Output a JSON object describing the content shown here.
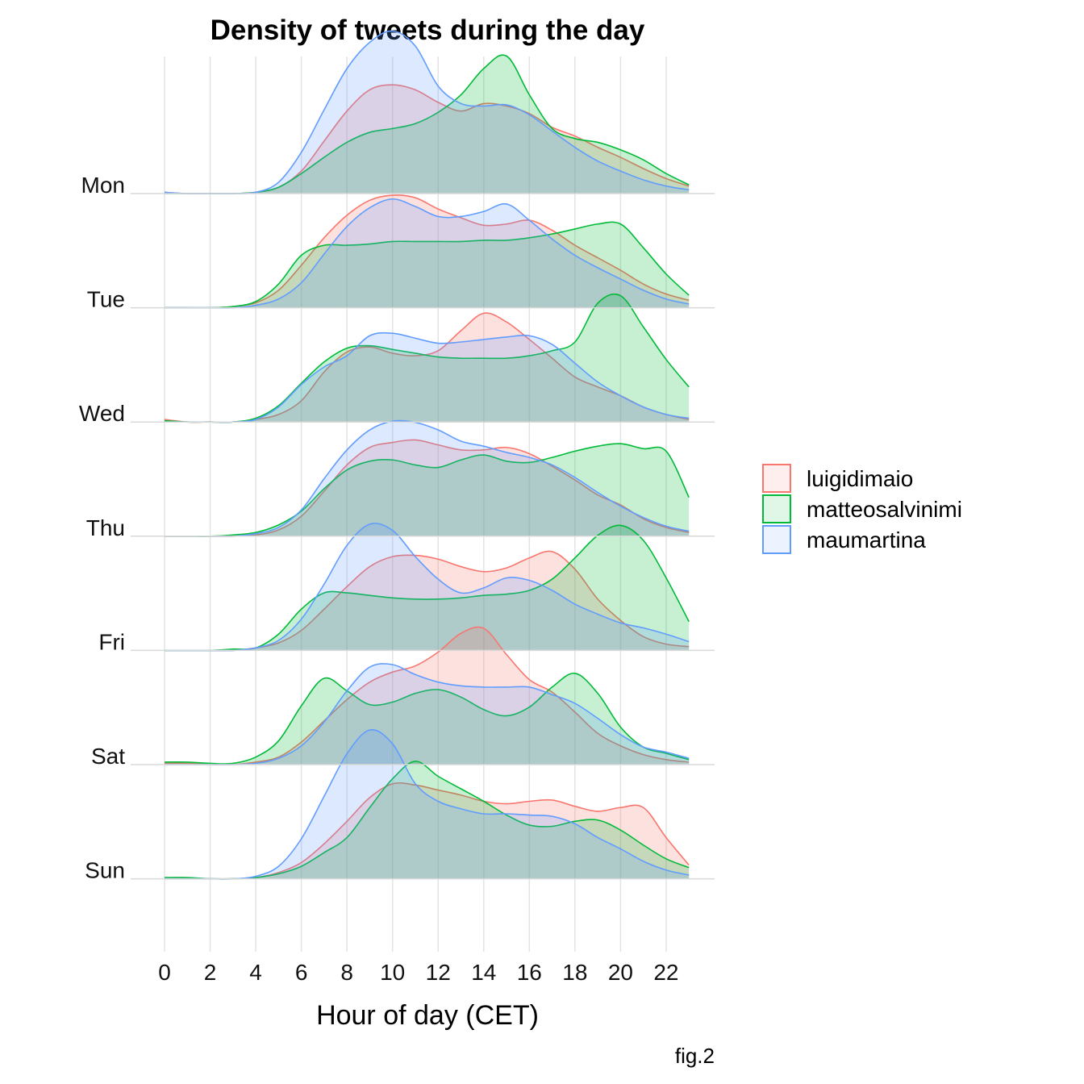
{
  "chart_data": {
    "type": "area",
    "subtype": "ridgeline-density",
    "title": "Density of tweets during the day",
    "xlabel": "Hour of day (CET)",
    "ylabel": "",
    "caption": "fig.2",
    "xlim": [
      0,
      23
    ],
    "xticks": [
      0,
      2,
      4,
      6,
      8,
      10,
      12,
      14,
      16,
      18,
      20,
      22
    ],
    "grid": "vertical-and-baselines",
    "legend_position": "right",
    "categories": [
      "Mon",
      "Tue",
      "Wed",
      "Thu",
      "Fri",
      "Sat",
      "Sun"
    ],
    "x": [
      0,
      1,
      2,
      3,
      4,
      5,
      6,
      7,
      8,
      9,
      10,
      11,
      12,
      13,
      14,
      15,
      16,
      17,
      18,
      19,
      20,
      21,
      22,
      23
    ],
    "series": [
      {
        "name": "luigidimaio",
        "color": "#F8766D",
        "rows": [
          [
            0.01,
            0.0,
            0.0,
            0.0,
            0.01,
            0.05,
            0.18,
            0.42,
            0.66,
            0.83,
            0.87,
            0.83,
            0.73,
            0.66,
            0.72,
            0.7,
            0.64,
            0.53,
            0.46,
            0.37,
            0.29,
            0.2,
            0.12,
            0.06
          ],
          [
            0.0,
            0.0,
            0.0,
            0.01,
            0.04,
            0.14,
            0.34,
            0.56,
            0.74,
            0.86,
            0.9,
            0.88,
            0.79,
            0.72,
            0.66,
            0.67,
            0.7,
            0.62,
            0.5,
            0.4,
            0.3,
            0.19,
            0.11,
            0.06
          ],
          [
            0.02,
            0.0,
            0.0,
            0.0,
            0.02,
            0.06,
            0.17,
            0.4,
            0.56,
            0.6,
            0.55,
            0.53,
            0.57,
            0.73,
            0.87,
            0.8,
            0.66,
            0.51,
            0.36,
            0.28,
            0.21,
            0.12,
            0.06,
            0.02
          ],
          [
            0.0,
            0.0,
            0.0,
            0.0,
            0.01,
            0.05,
            0.16,
            0.36,
            0.57,
            0.71,
            0.75,
            0.77,
            0.73,
            0.69,
            0.69,
            0.71,
            0.66,
            0.56,
            0.45,
            0.33,
            0.25,
            0.14,
            0.07,
            0.03
          ],
          [
            0.0,
            0.0,
            0.0,
            0.0,
            0.02,
            0.06,
            0.16,
            0.33,
            0.51,
            0.67,
            0.75,
            0.76,
            0.73,
            0.67,
            0.63,
            0.66,
            0.74,
            0.79,
            0.65,
            0.41,
            0.24,
            0.11,
            0.05,
            0.03
          ],
          [
            0.01,
            0.01,
            0.0,
            0.0,
            0.02,
            0.06,
            0.18,
            0.35,
            0.52,
            0.66,
            0.74,
            0.79,
            0.9,
            1.05,
            1.09,
            0.88,
            0.68,
            0.58,
            0.42,
            0.25,
            0.15,
            0.08,
            0.04,
            0.02
          ],
          [
            0.0,
            0.0,
            0.0,
            0.0,
            0.01,
            0.05,
            0.13,
            0.28,
            0.46,
            0.65,
            0.76,
            0.75,
            0.71,
            0.67,
            0.62,
            0.6,
            0.62,
            0.63,
            0.58,
            0.54,
            0.57,
            0.57,
            0.33,
            0.11
          ]
        ]
      },
      {
        "name": "matteosalvinimi",
        "color": "#00BA38",
        "rows": [
          [
            0.0,
            0.0,
            0.0,
            0.0,
            0.01,
            0.05,
            0.16,
            0.29,
            0.41,
            0.49,
            0.52,
            0.56,
            0.65,
            0.79,
            1.0,
            1.1,
            0.79,
            0.52,
            0.44,
            0.41,
            0.35,
            0.27,
            0.16,
            0.07
          ],
          [
            0.0,
            0.0,
            0.0,
            0.01,
            0.05,
            0.19,
            0.42,
            0.5,
            0.5,
            0.51,
            0.53,
            0.53,
            0.53,
            0.53,
            0.54,
            0.54,
            0.56,
            0.59,
            0.63,
            0.67,
            0.67,
            0.48,
            0.27,
            0.1
          ],
          [
            0.01,
            0.0,
            0.0,
            0.0,
            0.03,
            0.13,
            0.31,
            0.48,
            0.59,
            0.61,
            0.58,
            0.55,
            0.52,
            0.51,
            0.51,
            0.51,
            0.53,
            0.57,
            0.64,
            0.95,
            1.01,
            0.76,
            0.5,
            0.28
          ],
          [
            0.0,
            0.0,
            0.0,
            0.01,
            0.03,
            0.09,
            0.2,
            0.38,
            0.53,
            0.6,
            0.61,
            0.57,
            0.55,
            0.61,
            0.65,
            0.6,
            0.59,
            0.63,
            0.68,
            0.72,
            0.74,
            0.7,
            0.68,
            0.31
          ],
          [
            0.0,
            0.0,
            0.0,
            0.01,
            0.02,
            0.13,
            0.33,
            0.46,
            0.46,
            0.44,
            0.42,
            0.41,
            0.41,
            0.42,
            0.44,
            0.45,
            0.48,
            0.57,
            0.74,
            0.92,
            1.0,
            0.88,
            0.58,
            0.23
          ],
          [
            0.02,
            0.02,
            0.01,
            0.01,
            0.06,
            0.19,
            0.47,
            0.69,
            0.59,
            0.48,
            0.5,
            0.57,
            0.6,
            0.54,
            0.44,
            0.39,
            0.46,
            0.62,
            0.73,
            0.57,
            0.3,
            0.14,
            0.09,
            0.04
          ],
          [
            0.01,
            0.01,
            0.0,
            0.0,
            0.01,
            0.04,
            0.1,
            0.21,
            0.33,
            0.57,
            0.8,
            0.94,
            0.82,
            0.72,
            0.62,
            0.51,
            0.43,
            0.42,
            0.46,
            0.47,
            0.39,
            0.27,
            0.16,
            0.09
          ]
        ]
      },
      {
        "name": "maumartina",
        "color": "#619CFF",
        "rows": [
          [
            0.01,
            0.0,
            0.0,
            0.0,
            0.01,
            0.09,
            0.33,
            0.67,
            1.0,
            1.21,
            1.3,
            1.18,
            0.86,
            0.72,
            0.7,
            0.71,
            0.63,
            0.5,
            0.37,
            0.26,
            0.18,
            0.11,
            0.06,
            0.03
          ],
          [
            0.0,
            0.0,
            0.0,
            0.0,
            0.02,
            0.07,
            0.2,
            0.43,
            0.65,
            0.8,
            0.87,
            0.81,
            0.73,
            0.73,
            0.77,
            0.83,
            0.7,
            0.55,
            0.42,
            0.32,
            0.23,
            0.14,
            0.07,
            0.03
          ],
          [
            0.0,
            0.0,
            0.0,
            0.0,
            0.02,
            0.12,
            0.3,
            0.44,
            0.53,
            0.69,
            0.71,
            0.67,
            0.63,
            0.64,
            0.66,
            0.68,
            0.69,
            0.62,
            0.47,
            0.32,
            0.21,
            0.12,
            0.06,
            0.03
          ],
          [
            0.0,
            0.0,
            0.0,
            0.0,
            0.02,
            0.07,
            0.21,
            0.46,
            0.69,
            0.85,
            0.92,
            0.91,
            0.85,
            0.76,
            0.72,
            0.67,
            0.63,
            0.57,
            0.47,
            0.35,
            0.24,
            0.15,
            0.08,
            0.04
          ],
          [
            0.0,
            0.0,
            0.0,
            0.0,
            0.02,
            0.08,
            0.25,
            0.53,
            0.84,
            1.01,
            0.96,
            0.75,
            0.57,
            0.46,
            0.5,
            0.58,
            0.56,
            0.48,
            0.37,
            0.29,
            0.22,
            0.18,
            0.13,
            0.07
          ],
          [
            0.0,
            0.0,
            0.0,
            0.0,
            0.01,
            0.05,
            0.15,
            0.34,
            0.59,
            0.78,
            0.8,
            0.72,
            0.66,
            0.63,
            0.62,
            0.62,
            0.62,
            0.56,
            0.49,
            0.37,
            0.24,
            0.14,
            0.1,
            0.05
          ],
          [
            0.0,
            0.0,
            0.0,
            0.0,
            0.02,
            0.1,
            0.32,
            0.66,
            1.0,
            1.19,
            1.08,
            0.76,
            0.62,
            0.56,
            0.52,
            0.52,
            0.51,
            0.5,
            0.44,
            0.33,
            0.24,
            0.14,
            0.07,
            0.03
          ]
        ]
      }
    ]
  }
}
